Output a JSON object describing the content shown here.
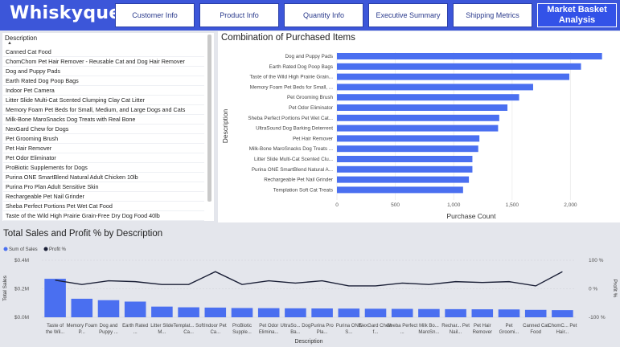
{
  "header": {
    "brand": "Whiskyque",
    "nav": [
      {
        "label": "Customer Info",
        "name": "nav-customer-info"
      },
      {
        "label": "Product Info",
        "name": "nav-product-info"
      },
      {
        "label": "Quantity Info",
        "name": "nav-quantity-info"
      },
      {
        "label": "Executive Summary",
        "name": "nav-executive-summary"
      },
      {
        "label": "Shipping Metrics",
        "name": "nav-shipping-metrics"
      },
      {
        "label": "Market Basket Analysis",
        "name": "nav-market-basket-analysis",
        "active": true
      }
    ]
  },
  "slicer": {
    "header": "Description",
    "items": [
      "Canned Cat Food",
      "ChomChom Pet Hair Remover - Reusable Cat and Dog Hair Remover",
      "Dog and Puppy Pads",
      "Earth Rated Dog Poop Bags",
      "Indoor Pet Camera",
      "Litter Slide Multi-Cat Scented Clumping Clay Cat Litter",
      "Memory Foam Pet Beds for Small, Medium, and Large Dogs and Cats",
      "Milk-Bone MaroSnacks Dog Treats with Real Bone",
      "NexGard Chew for Dogs",
      "Pet Grooming Brush",
      "Pet Hair Remover",
      "Pet Odor Eliminator",
      "ProBiotic Supplements for Dogs",
      "Purina ONE SmartBlend Natural Adult Chicken 10lb",
      "Purina Pro Plan Adult Sensitive Skin",
      "Rechargeable Pet Nail Grinder",
      "Sheba Perfect Portions Pet Wet Cat Food",
      "Taste of the Wild High Prairie Grain-Free Dry Dog Food 40lb"
    ]
  },
  "chart_data": [
    {
      "type": "bar",
      "orientation": "horizontal",
      "title": "Combination of Purchased Items",
      "xlabel": "Purchase Count",
      "ylabel": "Description",
      "color": "#4a6ff0",
      "xlim": [
        0,
        2300
      ],
      "xticks": [
        "0",
        "500",
        "1,000",
        "1,500",
        "2,000"
      ],
      "xtick_values": [
        0,
        500,
        1000,
        1500,
        2000
      ],
      "categories": [
        "Dog and Puppy Pads",
        "Earth Rated Dog Poop Bags",
        "Taste of the Wild High Prairie Grain...",
        "Memory Foam Pet Beds for Small, ...",
        "Pet Grooming Brush",
        "Pet Odor Eliminator",
        "Sheba Perfect Portions Pet Wet Cat...",
        "UltraSound Dog Barking Deterrent",
        "Pet Hair Remover",
        "Milk-Bone MaroSnacks Dog Treats ...",
        "Litter Slide Multi-Cat Scented Clu...",
        "Purina ONE SmartBlend Natural A...",
        "Rechargeable Pet Nail Grinder",
        "Templation Soft Cat Treats"
      ],
      "values": [
        2270,
        2090,
        1990,
        1680,
        1560,
        1460,
        1390,
        1380,
        1220,
        1210,
        1160,
        1160,
        1130,
        1080
      ]
    },
    {
      "type": "bar",
      "combo": "bar+line",
      "title": "Total Sales and Profit % by Description",
      "xlabel": "Description",
      "ylabel": "Total Sales",
      "y2label": "Profit %",
      "legend_position": "top-left",
      "colors": {
        "bars": "#4a6ff0",
        "line": "#1a1f36"
      },
      "yticks": [
        "$0.0M",
        "$0.2M",
        "$0.4M"
      ],
      "ylim": [
        0,
        0.4
      ],
      "y2ticks": [
        "-100 %",
        "0 %",
        "100 %"
      ],
      "y2lim": [
        -100,
        100
      ],
      "categories": [
        "Taste of the Wil...",
        "Memory Foam P...",
        "Dog and Puppy ...",
        "Earth Rated ...",
        "Litter Slide M...",
        "Templat... Soft Ca...",
        "Indoor Pet Ca...",
        "ProBiotic Supple...",
        "Pet Odor Elimina...",
        "UltraSo... Dog Ba...",
        "Purina Pro Pla...",
        "Purina ONE S...",
        "NexGard Chew f...",
        "Sheba Perfect ...",
        "Milk Bo... MaroSn...",
        "Rechar... Pet Nail...",
        "Pet Hair Remover",
        "Pet Groomi...",
        "Canned Cat Food",
        "ChomC... Pet Hair..."
      ],
      "series": [
        {
          "name": "Sum of Sales",
          "values": [
            0.27,
            0.13,
            0.12,
            0.11,
            0.075,
            0.07,
            0.068,
            0.065,
            0.064,
            0.063,
            0.062,
            0.061,
            0.06,
            0.059,
            0.058,
            0.057,
            0.056,
            0.055,
            0.052,
            0.05
          ]
        },
        {
          "name": "Profit %",
          "values": [
            30,
            15,
            28,
            25,
            15,
            15,
            60,
            15,
            28,
            20,
            28,
            10,
            10,
            20,
            15,
            25,
            22,
            25,
            10,
            60
          ]
        }
      ]
    }
  ]
}
